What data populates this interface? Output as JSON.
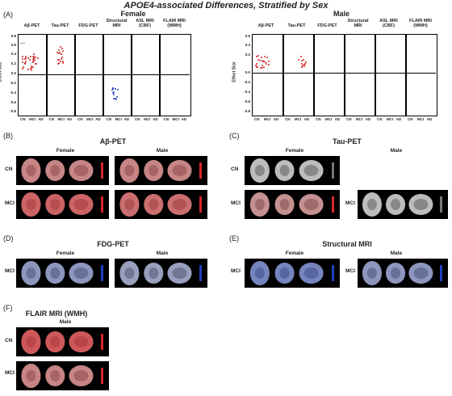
{
  "title": "APOE4-associated Differences, Stratified by Sex",
  "panel_letters": {
    "A": "(A)",
    "B": "(B)",
    "C": "(C)",
    "D": "(D)",
    "E": "(E)",
    "F": "(F)"
  },
  "panel_a": {
    "female_title": "Female",
    "male_title": "Male",
    "ylabel": "Effect Size",
    "modalities": [
      "Aβ-PET",
      "Tau-PET",
      "FDG-PET",
      "Structural MRI",
      "ASL MRI (CBF)",
      "FLAIR MRI (WMH)"
    ],
    "groups": [
      "CN",
      "MCI",
      "AD"
    ],
    "female_ticks": [
      "0.8",
      "0.6",
      "0.4",
      "0.2",
      "0.0",
      "-0.2",
      "-0.4",
      "-0.6",
      "-0.8"
    ],
    "male_ticks": [
      "0.6",
      "0.4",
      "0.2",
      "0.0",
      "-0.2",
      "-0.4",
      "-0.6",
      "-0.8"
    ]
  },
  "panel_b": {
    "title": "Aβ-PET",
    "female": "Female",
    "male": "Male",
    "rows": [
      "CN",
      "MCI"
    ]
  },
  "panel_c": {
    "title": "Tau-PET",
    "female": "Female",
    "male": "Male",
    "rows": [
      "CN",
      "MCI"
    ]
  },
  "panel_d": {
    "title": "FDG-PET",
    "female": "Female",
    "male": "Male",
    "rows": [
      "MCI"
    ]
  },
  "panel_e": {
    "title": "Structural MRI",
    "female": "Female",
    "male": "Male",
    "rows": [
      "MCI"
    ]
  },
  "panel_f": {
    "title": "FLAIR MRI (WMH)",
    "male": "Male",
    "rows": [
      "CN",
      "MCI"
    ]
  },
  "colors": {
    "positive": "#d62728",
    "negative": "#1f3fbf",
    "brain_bg": "#000000"
  }
}
